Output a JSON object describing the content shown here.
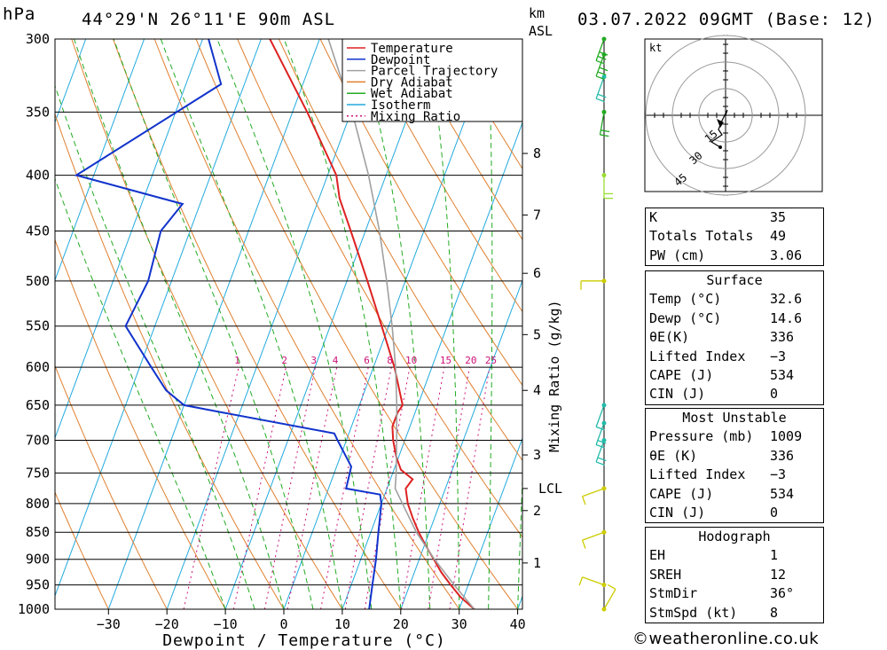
{
  "header": {
    "unit_left": "hPa",
    "location": "44°29'N  26°11'E  90m  ASL",
    "unit_km": "km",
    "unit_asl": "ASL",
    "datetime": "03.07.2022  09GMT  (Base: 12)"
  },
  "chart_data": {
    "type": "line",
    "title": "44°29'N  26°11'E  90m  ASL",
    "xlabel": "Dewpoint / Temperature (°C)",
    "ylabel": "hPa",
    "right_axis_label": "Mixing Ratio (g/kg)",
    "xlim": [
      -40,
      40
    ],
    "ylim": [
      1000,
      300
    ],
    "pressure_ticks": [
      300,
      350,
      400,
      450,
      500,
      550,
      600,
      650,
      700,
      750,
      800,
      850,
      900,
      950,
      1000
    ],
    "temperature_ticks": [
      -30,
      -20,
      -10,
      0,
      10,
      20,
      30,
      40
    ],
    "height_ticks_km": [
      {
        "label": "1",
        "p": 907
      },
      {
        "label": "2",
        "p": 812
      },
      {
        "label": "3",
        "p": 722
      },
      {
        "label": "4",
        "p": 630
      },
      {
        "label": "5",
        "p": 560
      },
      {
        "label": "6",
        "p": 492
      },
      {
        "label": "7",
        "p": 435
      },
      {
        "label": "8",
        "p": 382
      }
    ],
    "lcl": {
      "label": "LCL",
      "p": 775
    },
    "mixing_ratio_labels": [
      "1",
      "2",
      "3",
      "4",
      "6",
      "8",
      "10",
      "15",
      "20",
      "25"
    ],
    "mixing_ratio_values": [
      1,
      2,
      3,
      4,
      6,
      8,
      10,
      15,
      20,
      25
    ],
    "legend": [
      "Temperature",
      "Dewpoint",
      "Parcel Trajectory",
      "Dry Adiabat",
      "Wet Adiabat",
      "Isotherm",
      "Mixing Ratio"
    ],
    "legend_position": "top-right",
    "series": [
      {
        "name": "Temperature",
        "color": "#dd2222",
        "points": [
          [
            1000,
            32.6
          ],
          [
            975,
            29.5
          ],
          [
            950,
            27.0
          ],
          [
            925,
            24.6
          ],
          [
            900,
            22.5
          ],
          [
            875,
            20.3
          ],
          [
            850,
            18.2
          ],
          [
            825,
            16.3
          ],
          [
            800,
            14.5
          ],
          [
            775,
            13.2
          ],
          [
            760,
            13.8
          ],
          [
            745,
            11.2
          ],
          [
            725,
            9.6
          ],
          [
            700,
            8.0
          ],
          [
            680,
            7.0
          ],
          [
            660,
            7.0
          ],
          [
            650,
            7.4
          ],
          [
            600,
            3.6
          ],
          [
            550,
            -1.2
          ],
          [
            500,
            -6.5
          ],
          [
            450,
            -12.5
          ],
          [
            420,
            -16.5
          ],
          [
            400,
            -18.5
          ],
          [
            350,
            -27.5
          ],
          [
            300,
            -38.5
          ]
        ]
      },
      {
        "name": "Dewpoint",
        "color": "#1133cc",
        "points": [
          [
            1000,
            14.6
          ],
          [
            950,
            13.6
          ],
          [
            900,
            12.6
          ],
          [
            850,
            11.3
          ],
          [
            800,
            10.0
          ],
          [
            785,
            9.2
          ],
          [
            775,
            3.0
          ],
          [
            740,
            2.5
          ],
          [
            700,
            -1.5
          ],
          [
            690,
            -2.5
          ],
          [
            660,
            -23
          ],
          [
            650,
            -30
          ],
          [
            630,
            -34
          ],
          [
            600,
            -38
          ],
          [
            550,
            -45
          ],
          [
            500,
            -44
          ],
          [
            450,
            -45
          ],
          [
            425,
            -43
          ],
          [
            400,
            -63
          ],
          [
            330,
            -44
          ],
          [
            300,
            -49
          ]
        ]
      },
      {
        "name": "Parcel Trajectory",
        "color": "#a0a0a0",
        "points": [
          [
            1000,
            32.6
          ],
          [
            950,
            27.6
          ],
          [
            900,
            22.6
          ],
          [
            850,
            17.8
          ],
          [
            800,
            13.6
          ],
          [
            775,
            11.4
          ],
          [
            750,
            10.6
          ],
          [
            700,
            8.6
          ],
          [
            650,
            6.4
          ],
          [
            600,
            3.8
          ],
          [
            550,
            0.6
          ],
          [
            500,
            -3.2
          ],
          [
            450,
            -7.6
          ],
          [
            400,
            -13.0
          ],
          [
            350,
            -19.8
          ],
          [
            300,
            -28.5
          ]
        ]
      }
    ],
    "wind_barbs": [
      {
        "p": 1000,
        "dir": 30,
        "kt": 10,
        "color": "#cccc00"
      },
      {
        "p": 950,
        "dir": 290,
        "kt": 10,
        "color": "#cccc00"
      },
      {
        "p": 850,
        "dir": 250,
        "kt": 10,
        "color": "#cccc00"
      },
      {
        "p": 775,
        "dir": 250,
        "kt": 10,
        "color": "#cccc00"
      },
      {
        "p": 700,
        "dir": 200,
        "kt": 20,
        "color": "#22bbaa"
      },
      {
        "p": 675,
        "dir": 200,
        "kt": 20,
        "color": "#22bbaa"
      },
      {
        "p": 650,
        "dir": 200,
        "kt": 10,
        "color": "#22bbaa"
      },
      {
        "p": 500,
        "dir": 270,
        "kt": 10,
        "color": "#cccc00"
      },
      {
        "p": 400,
        "dir": 180,
        "kt": 20,
        "color": "#99dd33"
      },
      {
        "p": 350,
        "dir": 190,
        "kt": 20,
        "color": "#22aa22"
      },
      {
        "p": 325,
        "dir": 200,
        "kt": 20,
        "color": "#22bbaa"
      },
      {
        "p": 310,
        "dir": 200,
        "kt": 30,
        "color": "#22aa22"
      },
      {
        "p": 300,
        "dir": 200,
        "kt": 30,
        "color": "#22aa22"
      }
    ]
  },
  "hodograph": {
    "unit": "kt",
    "ring_labels": [
      "15",
      "30",
      "45"
    ]
  },
  "indices": {
    "rows": [
      {
        "k": "K",
        "v": "35"
      },
      {
        "k": "Totals Totals",
        "v": "49"
      },
      {
        "k": "PW (cm)",
        "v": "3.06"
      }
    ],
    "surface_title": "Surface",
    "surface": [
      {
        "k": "Temp (°C)",
        "v": "32.6"
      },
      {
        "k": "Dewp (°C)",
        "v": "14.6"
      },
      {
        "k": "θE(K)",
        "v": "336"
      },
      {
        "k": "Lifted Index",
        "v": "-3"
      },
      {
        "k": "CAPE (J)",
        "v": "534"
      },
      {
        "k": "CIN (J)",
        "v": "0"
      }
    ],
    "mu_title": "Most Unstable",
    "mu": [
      {
        "k": "Pressure (mb)",
        "v": "1009"
      },
      {
        "k": "θE (K)",
        "v": "336"
      },
      {
        "k": "Lifted Index",
        "v": "-3"
      },
      {
        "k": "CAPE (J)",
        "v": "534"
      },
      {
        "k": "CIN (J)",
        "v": "0"
      }
    ],
    "hodo_title": "Hodograph",
    "hodo": [
      {
        "k": "EH",
        "v": "1"
      },
      {
        "k": "SREH",
        "v": "12"
      },
      {
        "k": "StmDir",
        "v": "36°"
      },
      {
        "k": "StmSpd (kt)",
        "v": "8"
      }
    ]
  },
  "credit": "©weatheronline.co.uk"
}
